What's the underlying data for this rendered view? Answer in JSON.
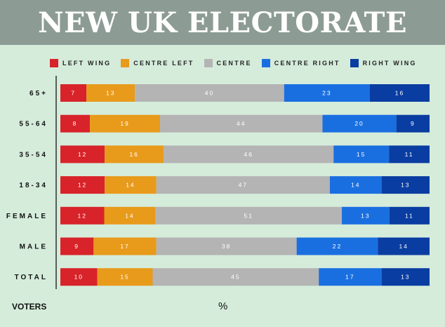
{
  "header": {
    "title": "NEW UK ELECTORATE"
  },
  "chart_data": {
    "type": "bar",
    "orientation": "horizontal",
    "stacked": true,
    "normalized": true,
    "categories": [
      "65+",
      "55-64",
      "35-54",
      "18-34",
      "FEMALE",
      "MALE",
      "TOTAL"
    ],
    "series": [
      {
        "name": "LEFT WING",
        "color": "#d8232a",
        "values": [
          7,
          8,
          12,
          12,
          12,
          9,
          10
        ]
      },
      {
        "name": "CENTRE LEFT",
        "color": "#e89a1b",
        "values": [
          13,
          19,
          16,
          14,
          14,
          17,
          15
        ]
      },
      {
        "name": "CENTRE",
        "color": "#b4b4b4",
        "values": [
          40,
          44,
          46,
          47,
          51,
          38,
          45
        ]
      },
      {
        "name": "CENTRE RIGHT",
        "color": "#1a6fe0",
        "values": [
          23,
          20,
          15,
          14,
          13,
          22,
          17
        ]
      },
      {
        "name": "RIGHT WING",
        "color": "#0a3da1",
        "values": [
          16,
          9,
          11,
          13,
          11,
          14,
          13
        ]
      }
    ],
    "legend_position": "top",
    "grid": false,
    "ylabel": "VOTERS",
    "xlabel": "%"
  },
  "footer": {
    "left_label": "VOTERS",
    "unit_label": "%"
  }
}
